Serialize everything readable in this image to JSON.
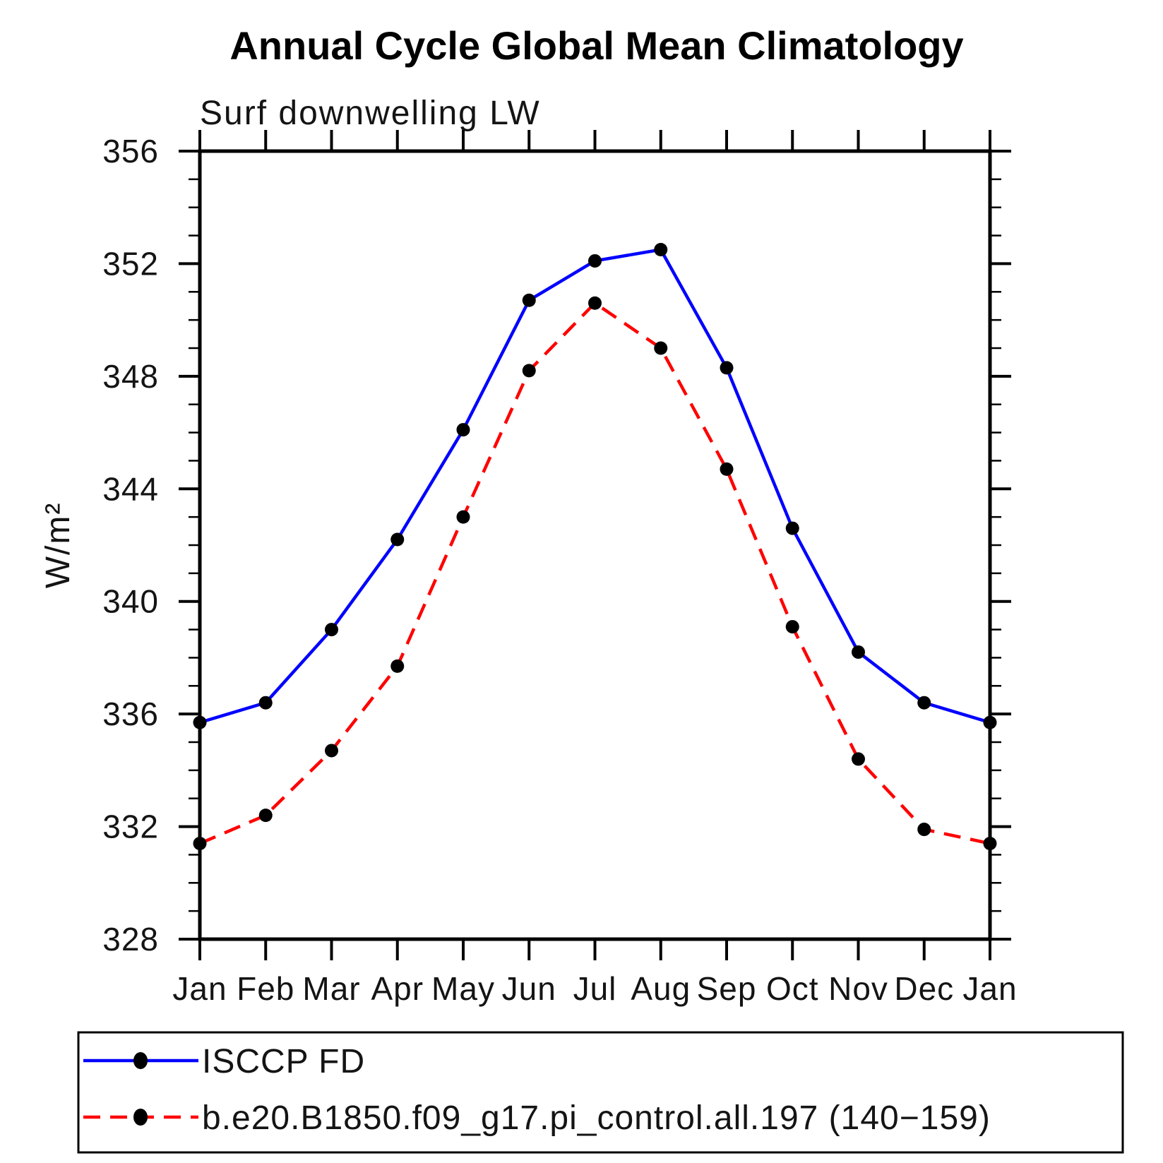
{
  "chart_data": {
    "type": "line",
    "title": "Annual Cycle Global Mean Climatology",
    "subtitle": "Surf downwelling LW",
    "ylabel": "W/m²",
    "xlabel": "",
    "categories": [
      "Jan",
      "Feb",
      "Mar",
      "Apr",
      "May",
      "Jun",
      "Jul",
      "Aug",
      "Sep",
      "Oct",
      "Nov",
      "Dec",
      "Jan"
    ],
    "ylim": [
      328,
      356
    ],
    "yticks": [
      328,
      332,
      336,
      340,
      344,
      348,
      352,
      356
    ],
    "ytick_minor_step": 1,
    "grid": false,
    "legend_position": "bottom-left-box",
    "series": [
      {
        "name": "ISCCP FD",
        "color": "#0000FF",
        "line_style": "solid",
        "marker": "filled-black-circle",
        "values": [
          335.7,
          336.4,
          339.0,
          342.2,
          346.1,
          350.7,
          352.1,
          352.5,
          348.3,
          342.6,
          338.2,
          336.4,
          335.7
        ]
      },
      {
        "name": "b.e20.B1850.f09_g17.pi_control.all.197 (140−159)",
        "color": "#FF0000",
        "line_style": "dashed",
        "marker": "filled-black-circle",
        "values": [
          331.4,
          332.4,
          334.7,
          337.7,
          343.0,
          348.2,
          350.6,
          349.0,
          344.7,
          339.1,
          334.4,
          331.9,
          331.4
        ]
      }
    ],
    "marker_color": "#000000",
    "axis_color": "#000000",
    "background_color": "#ffffff"
  }
}
